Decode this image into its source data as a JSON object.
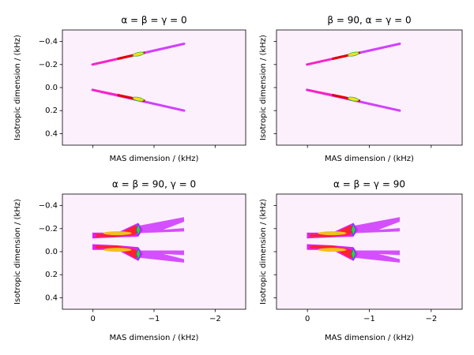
{
  "chart_data": [
    {
      "type": "contour",
      "title": "α = β = γ = 0",
      "x_label": "MAS dimension / (kHz)",
      "y_label": "Isotropic dimension / (kHz)",
      "xlim": [
        0.5,
        -2.5
      ],
      "ylim": [
        -0.5,
        0.5
      ],
      "xticks": [
        0,
        -1,
        -2
      ],
      "yticks": [
        {
          "value": -0.4,
          "label": "−0.4"
        },
        {
          "value": -0.2,
          "label": "−0.2"
        },
        {
          "value": 0,
          "label": "0.0"
        },
        {
          "value": 0.2,
          "label": "0.2"
        },
        {
          "value": 0.4,
          "label": "0.4"
        }
      ]
    },
    {
      "type": "contour",
      "title": "β = 90, α = γ = 0",
      "x_label": "MAS dimension / (kHz)",
      "y_label": "Isotropic dimension / (kHz)",
      "xlim": [
        0.5,
        -2.5
      ],
      "ylim": [
        -0.5,
        0.5
      ],
      "xticks": [
        0,
        -1,
        -2
      ],
      "yticks": [
        -0.4,
        -0.2,
        0,
        0.2,
        0.4
      ]
    },
    {
      "type": "contour",
      "title": "α = β = 90, γ = 0",
      "x_label": "MAS dimension / (kHz)",
      "y_label": "Isotropic dimension / (kHz)",
      "xlim": [
        0.5,
        -2.5
      ],
      "ylim": [
        -0.5,
        0.5
      ],
      "xticks": [
        {
          "value": 0,
          "label": "0"
        },
        {
          "value": -1,
          "label": "−1"
        },
        {
          "value": -2,
          "label": "−2"
        }
      ],
      "yticks": [
        {
          "value": -0.4,
          "label": "−0.4"
        },
        {
          "value": -0.2,
          "label": "−0.2"
        },
        {
          "value": 0,
          "label": "0.0"
        },
        {
          "value": 0.2,
          "label": "0.2"
        },
        {
          "value": 0.4,
          "label": "0.4"
        }
      ]
    },
    {
      "type": "contour",
      "title": "α = β = γ = 90",
      "x_label": "MAS dimension / (kHz)",
      "y_label": "Isotropic dimension / (kHz)",
      "xlim": [
        0.5,
        -2.5
      ],
      "ylim": [
        -0.5,
        0.5
      ],
      "xticks": [
        {
          "value": 0,
          "label": "0"
        },
        {
          "value": -1,
          "label": "−1"
        },
        {
          "value": -2,
          "label": "−2"
        }
      ],
      "yticks": [
        -0.4,
        -0.2,
        0,
        0.2,
        0.4
      ]
    }
  ]
}
